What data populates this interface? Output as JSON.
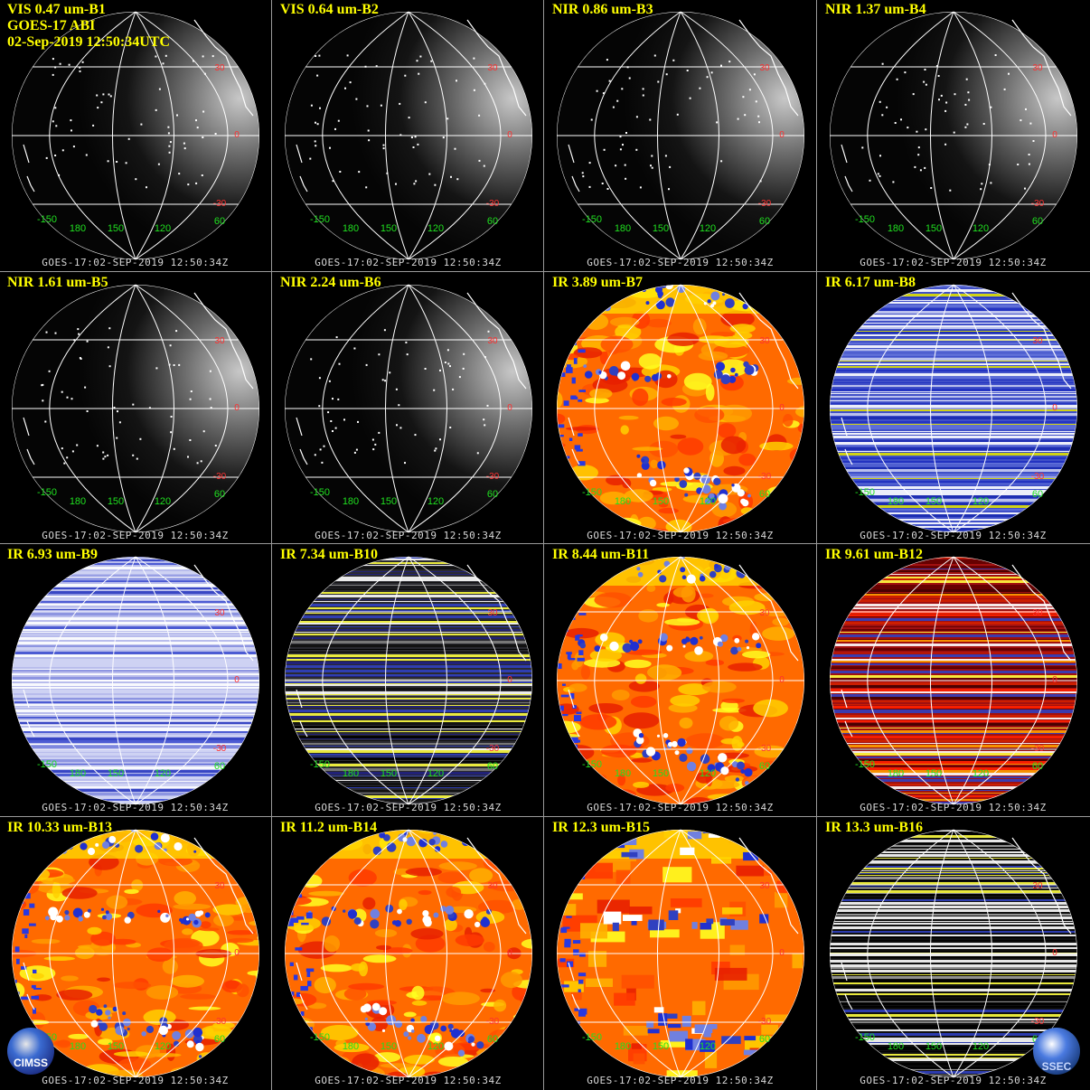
{
  "header": {
    "satellite": "GOES-17 ABI",
    "datetime": "02-Sep-2019 12:50:34UTC"
  },
  "footer_text": "GOES-17:02-SEP-2019  12:50:34Z",
  "lat_labels": [
    "30",
    "0",
    "-30"
  ],
  "lon_labels": [
    "-150",
    "180",
    "150",
    "120",
    "60"
  ],
  "panels": [
    {
      "title": "VIS 0.47 um-B1",
      "style": "vis"
    },
    {
      "title": "VIS 0.64 um-B2",
      "style": "vis"
    },
    {
      "title": "NIR 0.86 um-B3",
      "style": "vis"
    },
    {
      "title": "NIR 1.37 um-B4",
      "style": "vis"
    },
    {
      "title": "NIR 1.61 um-B5",
      "style": "vis"
    },
    {
      "title": "NIR 2.24 um-B6",
      "style": "vis"
    },
    {
      "title": "IR 3.89 um-B7",
      "style": "ir"
    },
    {
      "title": "IR 6.17 um-B8",
      "style": "stripe-blue"
    },
    {
      "title": "IR 6.93 um-B9",
      "style": "stripe-light"
    },
    {
      "title": "IR 7.34 um-B10",
      "style": "stripe-dark"
    },
    {
      "title": "IR 8.44 um-B11",
      "style": "ir"
    },
    {
      "title": "IR 9.61 um-B12",
      "style": "stripe-red"
    },
    {
      "title": "IR 10.33 um-B13",
      "style": "ir"
    },
    {
      "title": "IR 11.2 um-B14",
      "style": "ir"
    },
    {
      "title": "IR 12.3 um-B15",
      "style": "ir-blocky"
    },
    {
      "title": "IR 13.3 um-B16",
      "style": "stripe-bw"
    }
  ],
  "logos": {
    "left": "CIMSS",
    "right": "SSEC"
  },
  "colors": {
    "title": "#ffff00",
    "lat_label": "#ff3030",
    "lon_label": "#20e020",
    "grid": "#ffffff"
  }
}
